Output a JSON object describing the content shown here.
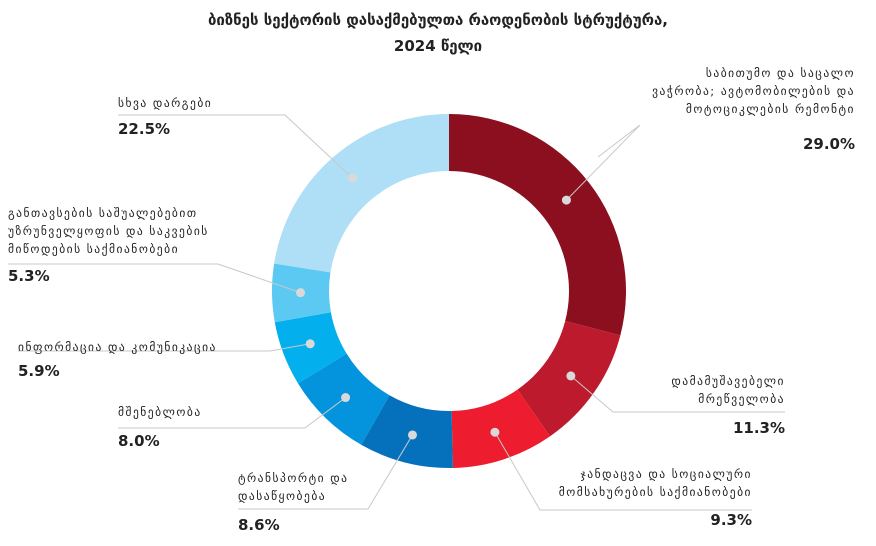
{
  "chart_data": {
    "type": "pie",
    "title": "ბიზნეს სექტორის დასაქმებულთა რაოდენობის სტრუქტურა,",
    "subtitle": "2024 წელი",
    "slices": [
      {
        "label": [
          "საბითუმო და საცალო",
          "ვაჭრობა; ავტომობილების და",
          "მოტოციკლების რემონტი"
        ],
        "value_label": "29.0%",
        "value": 29.0,
        "color": "#8b0f1e"
      },
      {
        "label": [
          "დამამუშავებელი",
          "მრეწველობა"
        ],
        "value_label": "11.3%",
        "value": 11.3,
        "color": "#be1a2e"
      },
      {
        "label": [
          "ჯანდაცვა და სოციალური",
          "მომსახურების საქმიანობები"
        ],
        "value_label": "9.3%",
        "value": 9.3,
        "color": "#ed1c2e"
      },
      {
        "label": [
          "ტრანსპორტი და",
          "დასაწყობება"
        ],
        "value_label": "8.6%",
        "value": 8.6,
        "color": "#0571bd"
      },
      {
        "label": [
          "მშენებლობა"
        ],
        "value_label": "8.0%",
        "value": 8.0,
        "color": "#0394dd"
      },
      {
        "label": [
          "ინფორმაცია და კომუნიკაცია"
        ],
        "value_label": "5.9%",
        "value": 5.9,
        "color": "#03b0ed"
      },
      {
        "label": [
          "განთავსების საშუალებებით",
          "უზრუნველყოფის და საკვების",
          "მიწოდების საქმიანობები"
        ],
        "value_label": "5.3%",
        "value": 5.3,
        "color": "#5cc9f3"
      },
      {
        "label": [
          "სხვა დარგები"
        ],
        "value_label": "22.5%",
        "value": 22.5,
        "color": "#aedff7"
      }
    ]
  }
}
